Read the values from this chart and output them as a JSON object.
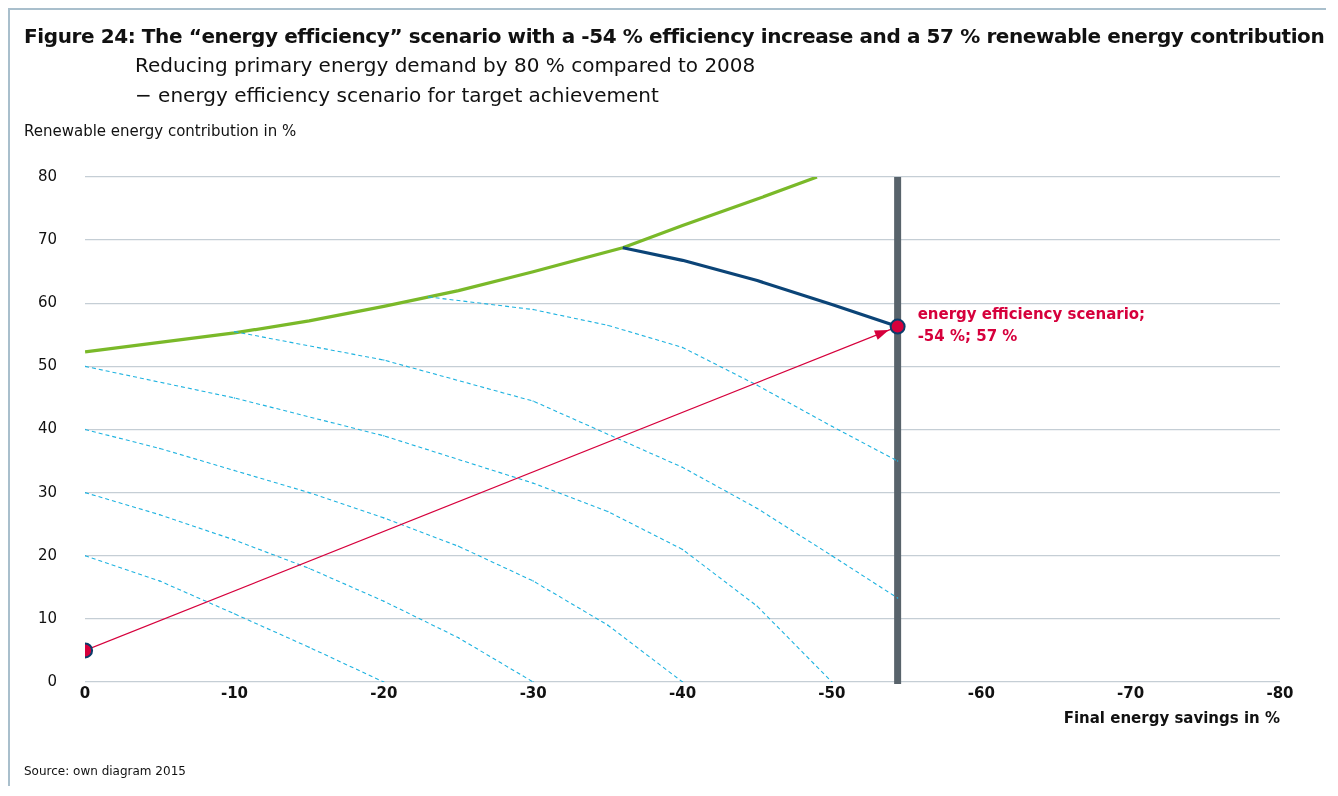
{
  "chart_data": {
    "type": "line",
    "title": "Figure 24: The “energy efficiency” scenario with a -54 % efficiency increase and a 57 % renewable energy contribution",
    "subtitle": "Reducing primary energy demand by 80 % compared to 2008\n− energy efficiency scenario for target achievement",
    "ylabel": "Renewable energy contribution in %",
    "xlabel": "Final energy savings in %",
    "xlim": [
      0,
      -80
    ],
    "xticks": [
      0,
      -10,
      -20,
      -30,
      -40,
      -50,
      -60,
      -70,
      -80
    ],
    "ylim": [
      0,
      80
    ],
    "yticks": [
      0,
      10,
      20,
      30,
      40,
      50,
      60,
      70,
      80
    ],
    "grid": "y",
    "legend": false,
    "series": [
      {
        "color": "#7ab929",
        "line_style": "solid",
        "x": [
          0,
          -5,
          -10,
          -15,
          -20,
          -25,
          -30,
          -36,
          -40,
          -45,
          -49
        ],
        "values": [
          52.3,
          53.8,
          55.3,
          57.2,
          59.5,
          62,
          65,
          68.8,
          72.3,
          76.5,
          80
        ]
      },
      {
        "color": "#0b4477",
        "line_style": "solid",
        "x": [
          -36,
          -40,
          -45,
          -50,
          -54.4
        ],
        "values": [
          68.8,
          66.8,
          63.6,
          59.8,
          56.3
        ]
      },
      {
        "color": "#1fb3e0",
        "line_style": "dashed",
        "x": [
          0,
          -5,
          -10,
          -15,
          -20
        ],
        "values": [
          20,
          16,
          10.8,
          5.5,
          0
        ]
      },
      {
        "color": "#1fb3e0",
        "line_style": "dashed",
        "x": [
          0,
          -5,
          -10,
          -15,
          -20,
          -25,
          -30
        ],
        "values": [
          30,
          26.5,
          22.5,
          18,
          12.8,
          7,
          0
        ]
      },
      {
        "color": "#1fb3e0",
        "line_style": "dashed",
        "x": [
          0,
          -5,
          -10,
          -15,
          -20,
          -25,
          -30,
          -35,
          -40
        ],
        "values": [
          40,
          37,
          33.5,
          30,
          26,
          21.5,
          16,
          9,
          0
        ]
      },
      {
        "color": "#1fb3e0",
        "line_style": "dashed",
        "x": [
          0,
          -10,
          -20,
          -30,
          -35,
          -40,
          -45,
          -50
        ],
        "values": [
          50,
          45,
          39,
          31.5,
          27,
          21,
          12,
          0
        ]
      },
      {
        "color": "#1fb3e0",
        "line_style": "dashed",
        "x": [
          -10,
          -20,
          -30,
          -40,
          -45,
          -50,
          -54.4
        ],
        "values": [
          55.5,
          51,
          44.5,
          34,
          27.5,
          20,
          13.3
        ]
      },
      {
        "color": "#1fb3e0",
        "line_style": "dashed",
        "x": [
          -23,
          -30,
          -35,
          -40,
          -45,
          -50,
          -54.4
        ],
        "values": [
          61,
          59,
          56.5,
          53,
          47,
          40.5,
          35
        ]
      },
      {
        "color": "#d6003c",
        "line_style": "solid",
        "marker": "circle",
        "x": [
          0,
          -54.4
        ],
        "values": [
          5,
          56.3
        ]
      }
    ],
    "ref_lines": [
      {
        "axis": "x",
        "value": -54.4,
        "color": "#58636b"
      }
    ],
    "annotations": [
      {
        "text": "energy efficiency scenario; -54 %; 57 %",
        "x": -54.4,
        "y": 56.3
      },
      "Source: own diagram 2015"
    ]
  }
}
